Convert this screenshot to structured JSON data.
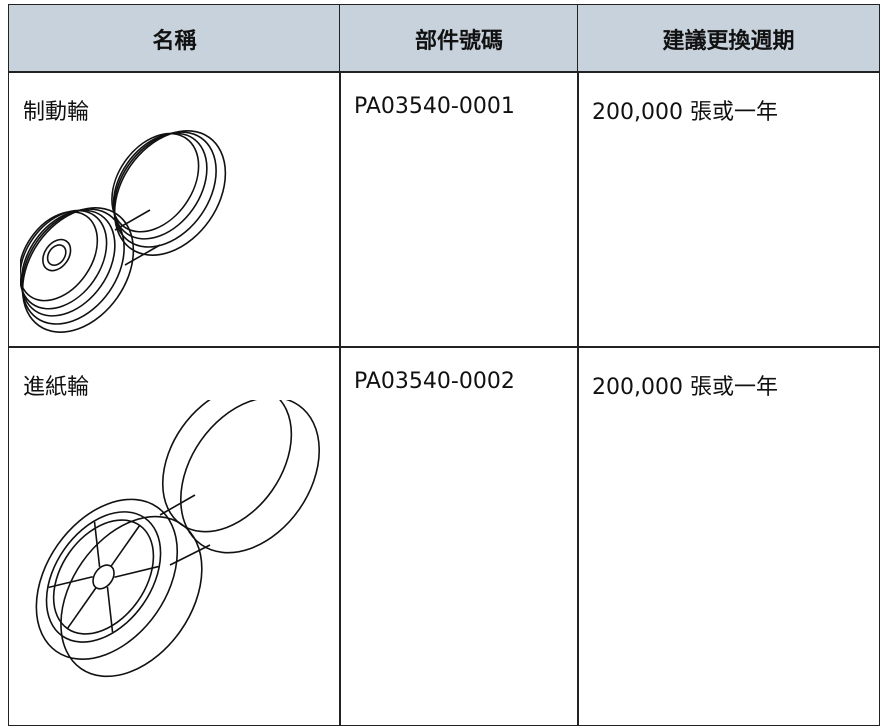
{
  "table": {
    "headers": [
      "名稱",
      "部件號碼",
      "建議更換週期"
    ],
    "rows": [
      [
        "制動輪",
        "PA03540-0001",
        "200,000 張或一年"
      ],
      [
        "進紙輪",
        "PA03540-0002",
        "200,000 張或一年"
      ]
    ]
  }
}
